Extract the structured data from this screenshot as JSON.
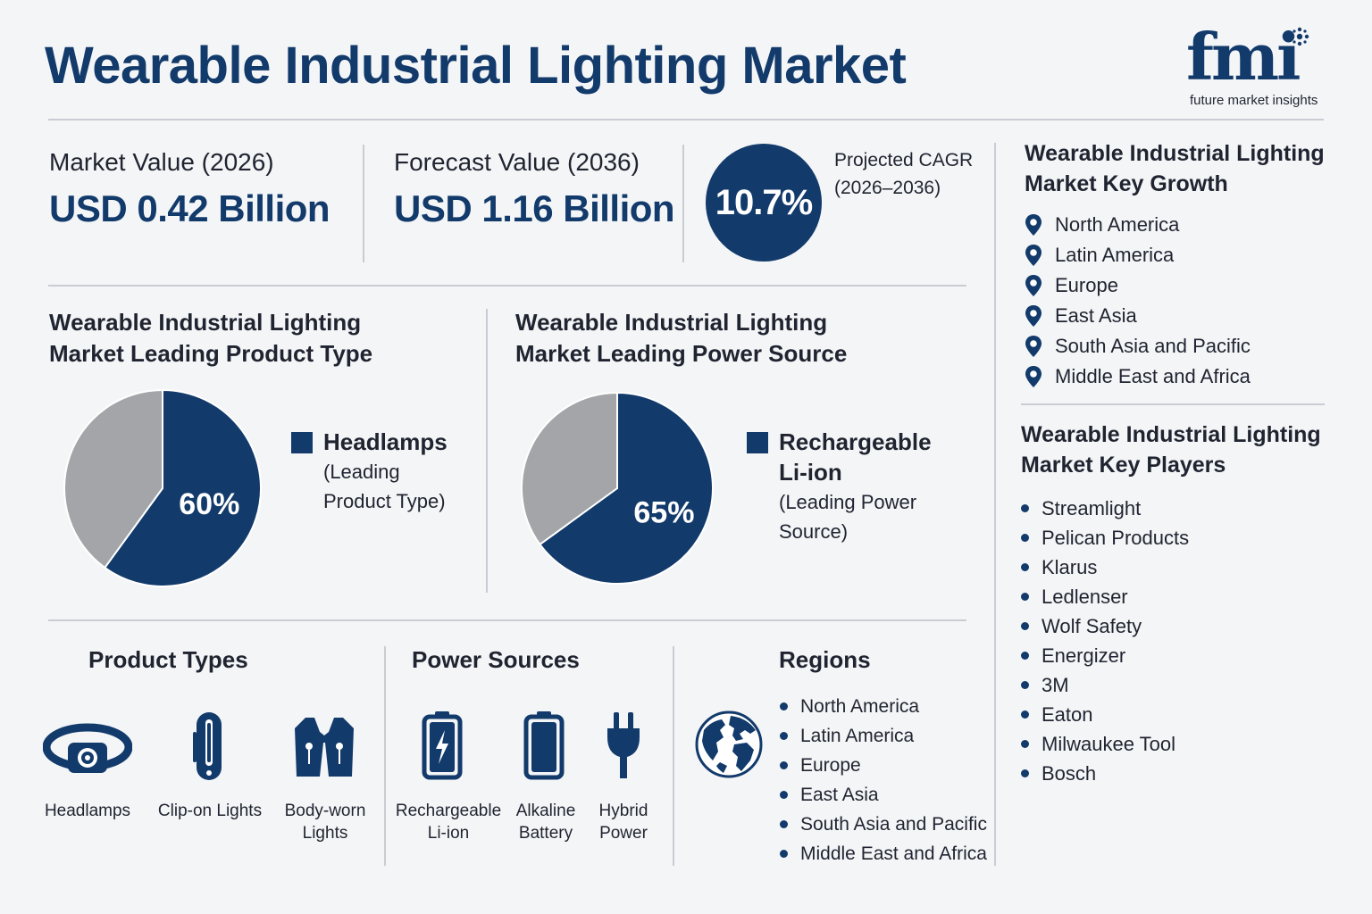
{
  "header": {
    "title": "Wearable Industrial Lighting Market",
    "logo_mark": "fmi",
    "logo_sub": "future market insights"
  },
  "kpis": {
    "market_value_label": "Market Value (2026)",
    "market_value": "USD 0.42 Billion",
    "forecast_value_label": "Forecast Value (2036)",
    "forecast_value": "USD 1.16 Billion",
    "cagr_value": "10.7%",
    "cagr_label_1": "Projected CAGR",
    "cagr_label_2": "(2026–2036)"
  },
  "product_type_section": {
    "title_1": "Wearable Industrial Lighting",
    "title_2": "Market Leading Product Type",
    "legend_main": "Headlamps",
    "legend_sub_1": "(Leading",
    "legend_sub_2": "Product Type)"
  },
  "power_source_section": {
    "title_1": "Wearable Industrial Lighting",
    "title_2": "Market Leading Power Source",
    "legend_main_1": "Rechargeable",
    "legend_main_2": "Li-ion",
    "legend_sub_1": "(Leading Power",
    "legend_sub_2": "Source)"
  },
  "chart_data": [
    {
      "type": "pie",
      "slices": [
        {
          "label": "Headlamps",
          "value": 60,
          "display": "60%",
          "color": "#123a6b"
        },
        {
          "label": "",
          "value": 40,
          "display": "",
          "color": "#a3a5a8"
        }
      ]
    },
    {
      "type": "pie",
      "slices": [
        {
          "label": "Rechargeable Li-ion",
          "value": 65,
          "display": "65%",
          "color": "#123a6b"
        },
        {
          "label": "",
          "value": 35,
          "display": "",
          "color": "#a3a5a8"
        }
      ]
    }
  ],
  "key_growth": {
    "title_1": "Wearable Industrial Lighting",
    "title_2": "Market Key Growth",
    "icon": "map-pin-icon",
    "items": [
      "North America",
      "Latin America",
      "Europe",
      "East Asia",
      "South Asia and Pacific",
      "Middle East and Africa"
    ]
  },
  "key_players": {
    "title_1": "Wearable Industrial Lighting",
    "title_2": "Market Key Players",
    "items": [
      "Streamlight",
      "Pelican Products",
      "Klarus",
      "Ledlenser",
      "Wolf Safety",
      "Energizer",
      "3M",
      "Eaton",
      "Milwaukee Tool",
      "Bosch"
    ]
  },
  "product_types": {
    "title": "Product Types",
    "items": [
      {
        "icon": "headlamp-icon",
        "label_1": "Headlamps",
        "label_2": ""
      },
      {
        "icon": "clip-on-light-icon",
        "label_1": "Clip-on Lights",
        "label_2": ""
      },
      {
        "icon": "vest-icon",
        "label_1": "Body-worn",
        "label_2": "Lights"
      }
    ]
  },
  "power_sources": {
    "title": "Power Sources",
    "items": [
      {
        "icon": "rechargeable-battery-icon",
        "label_1": "Rechargeable",
        "label_2": "Li-ion"
      },
      {
        "icon": "battery-icon",
        "label_1": "Alkaline",
        "label_2": "Battery"
      },
      {
        "icon": "plug-icon",
        "label_1": "Hybrid",
        "label_2": "Power"
      }
    ]
  },
  "regions": {
    "title": "Regions",
    "icon": "globe-icon",
    "items": [
      "North America",
      "Latin America",
      "Europe",
      "East Asia",
      "South Asia and Pacific",
      "Middle East and Africa"
    ]
  },
  "colors": {
    "navy": "#123a6b",
    "grey": "#a3a5a8",
    "background": "#f4f5f7"
  }
}
